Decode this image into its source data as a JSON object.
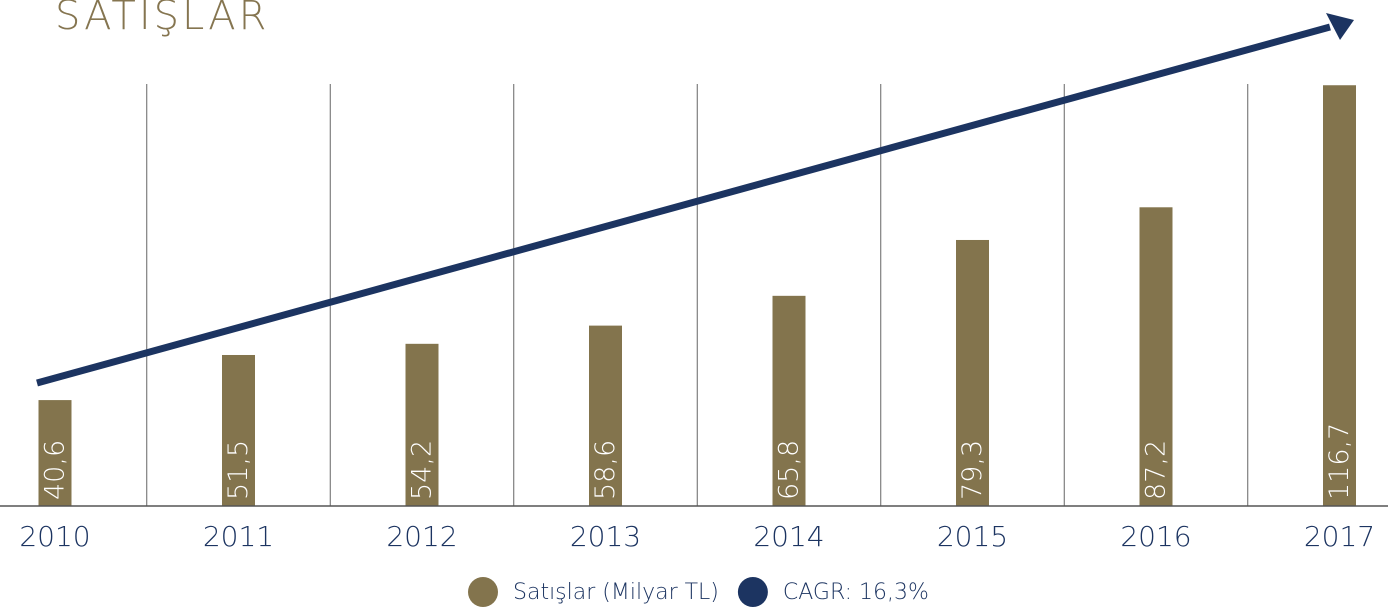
{
  "chart_data": {
    "type": "bar",
    "title": "SATIŞLAR",
    "categories": [
      "2010",
      "2011",
      "2012",
      "2013",
      "2014",
      "2015",
      "2016",
      "2017"
    ],
    "series": [
      {
        "name": "Satışlar (Milyar TL)",
        "color": "#83744d",
        "values": [
          40.6,
          51.5,
          54.2,
          58.6,
          65.8,
          79.3,
          87.2,
          116.7
        ],
        "value_labels": [
          "40,6",
          "51,5",
          "54,2",
          "58,6",
          "65,8",
          "79,3",
          "87,2",
          "116,7"
        ]
      },
      {
        "name": "CAGR: 16,3%",
        "color": "#1c3461"
      }
    ],
    "ylim": [
      15,
      117
    ]
  }
}
